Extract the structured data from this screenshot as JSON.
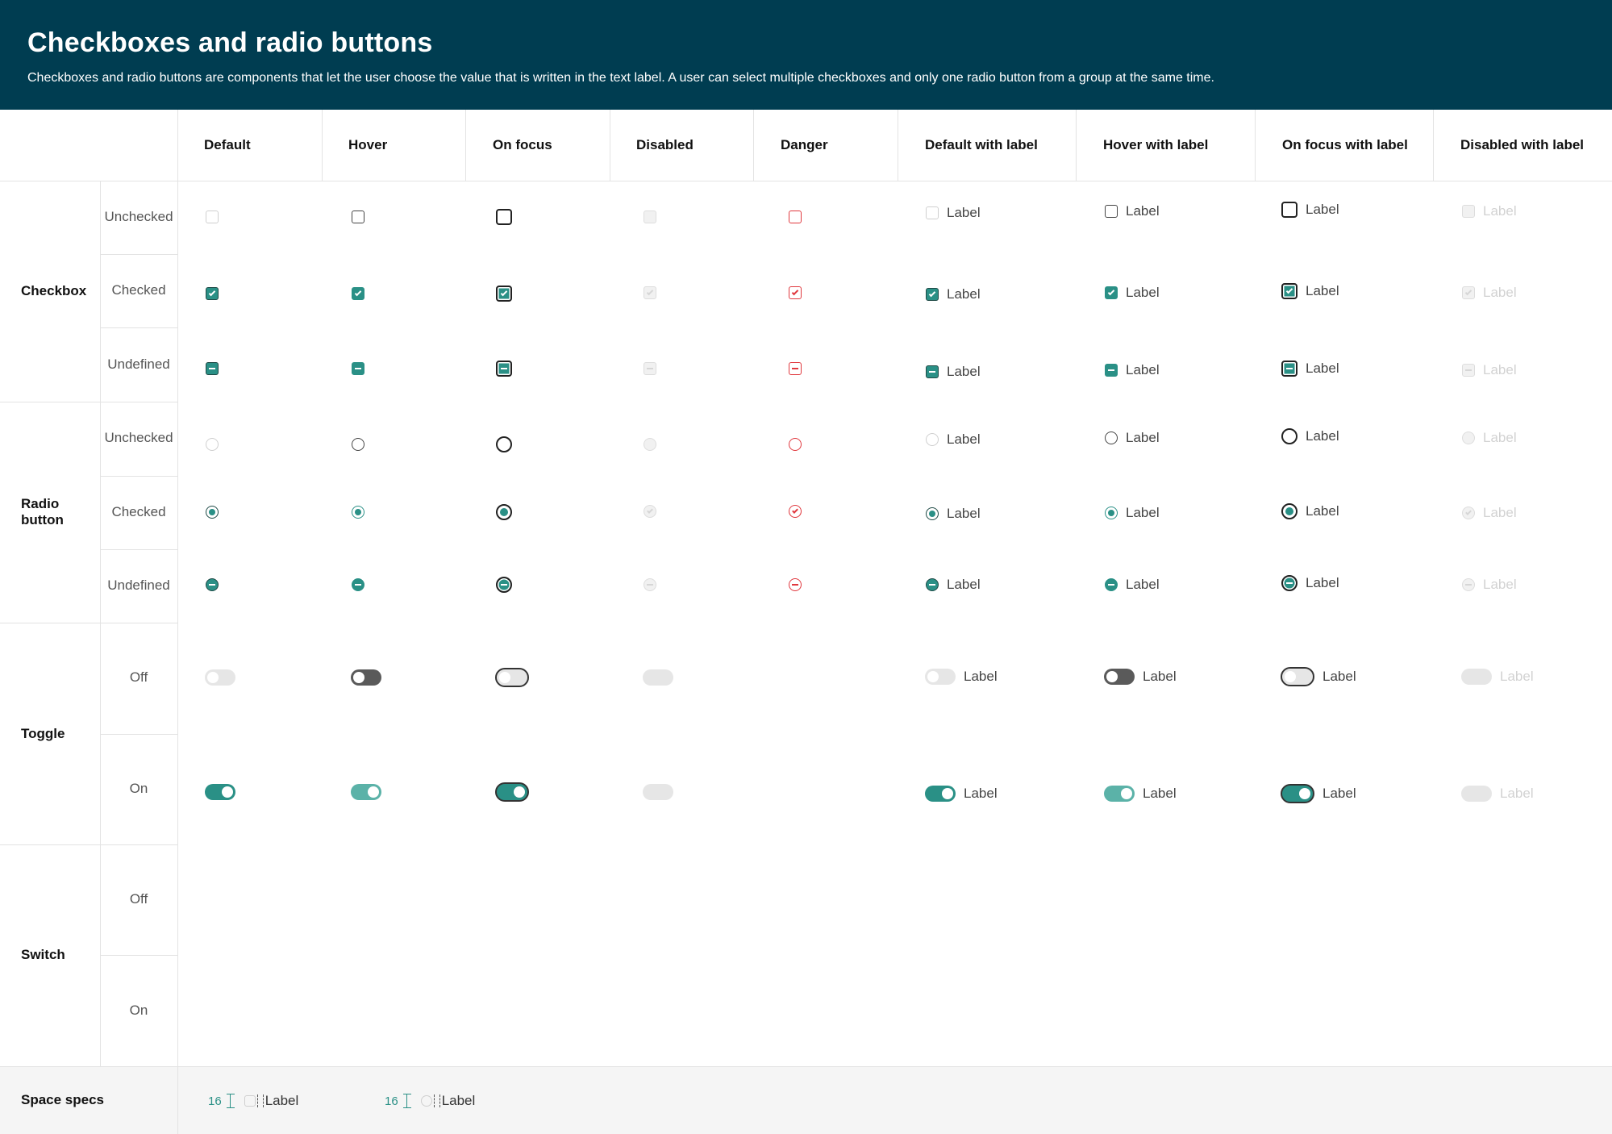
{
  "header": {
    "title": "Checkboxes and radio buttons",
    "description": "Checkboxes and radio buttons are components that let the user choose the value that is written in the text label. A user can select multiple checkboxes and only one radio button from a group at the same time."
  },
  "columns": [
    "Default",
    "Hover",
    "On focus",
    "Disabled",
    "Danger",
    "Default with label",
    "Hover with label",
    "On focus with label",
    "Disabled with label"
  ],
  "groups": {
    "checkbox": {
      "label": "Checkbox",
      "states": [
        "Unchecked",
        "Checked",
        "Undefined"
      ]
    },
    "radio": {
      "label": "Radio button",
      "states": [
        "Unchecked",
        "Checked",
        "Undefined"
      ]
    },
    "toggle": {
      "label": "Toggle",
      "states": [
        "Off",
        "On"
      ]
    },
    "switch": {
      "label": "Switch",
      "states": [
        "Off",
        "On"
      ]
    },
    "space": {
      "label": "Space specs"
    }
  },
  "control_label": "Label",
  "space_specs": [
    {
      "value": "16",
      "label": "Label"
    },
    {
      "value": "16",
      "label": "Label"
    }
  ],
  "colors": {
    "header_bg": "#003d51",
    "accent": "#2a9086",
    "danger": "#e0383e"
  }
}
